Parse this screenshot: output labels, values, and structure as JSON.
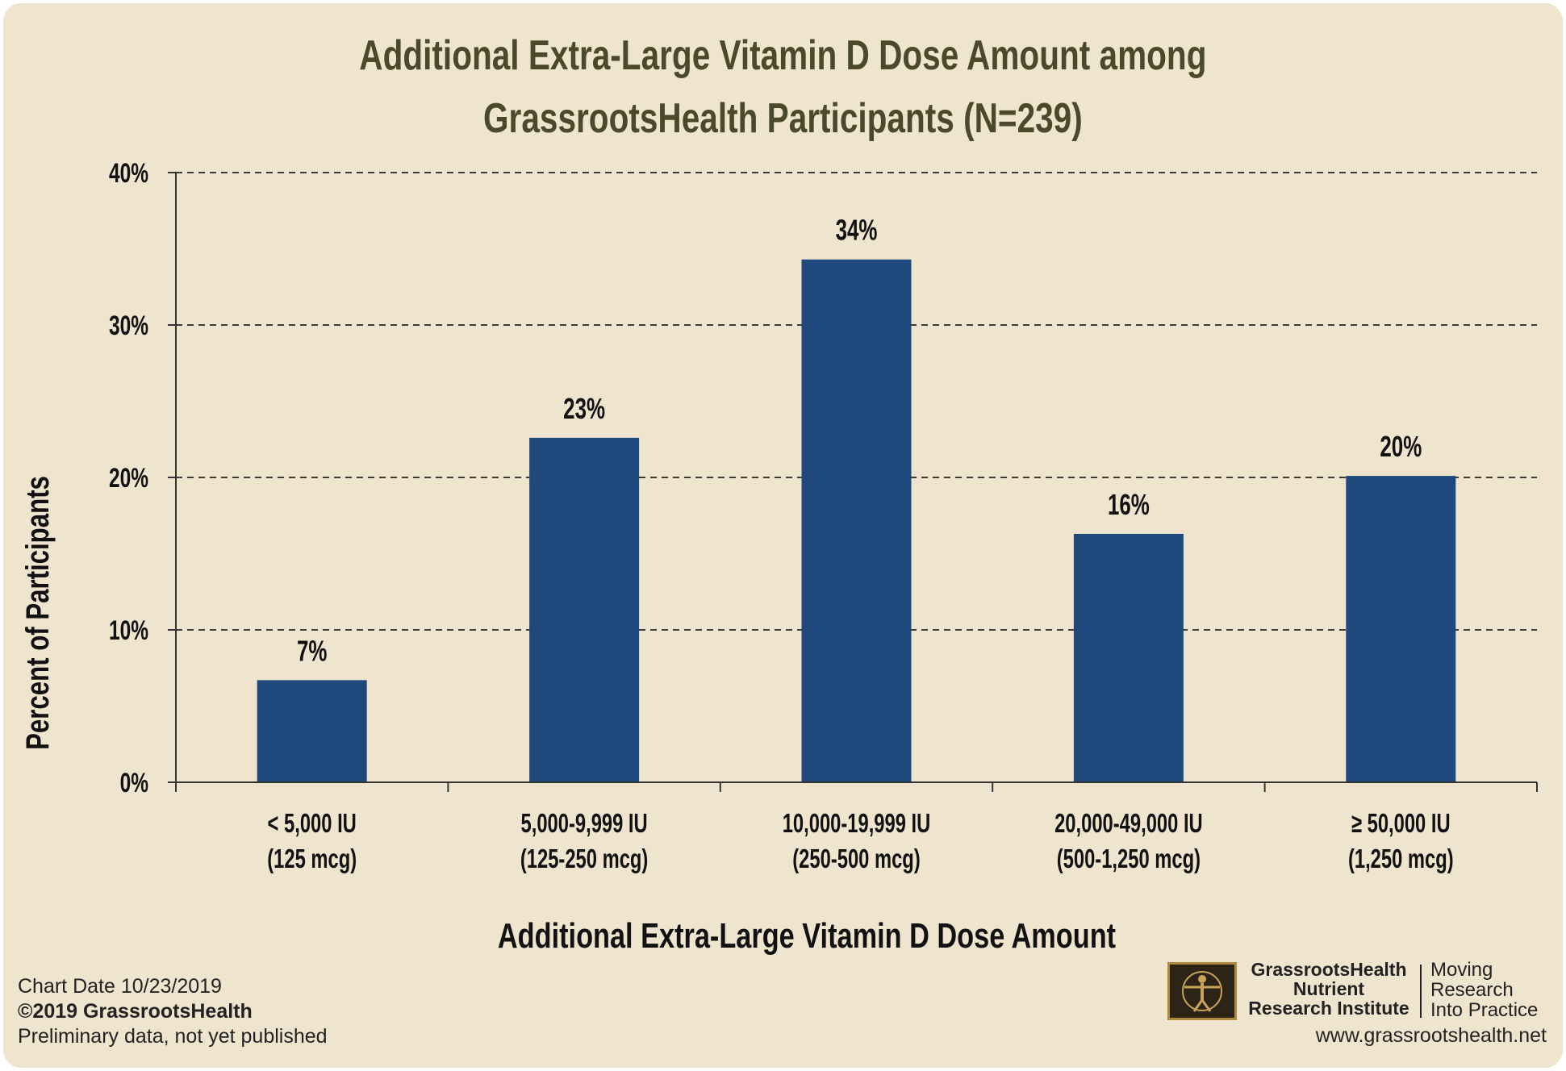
{
  "chart_data": {
    "type": "bar",
    "title_lines": [
      "Additional Extra-Large Vitamin D Dose Amount among",
      "GrassrootsHealth Participants (N=239)"
    ],
    "xlabel": "Additional Extra-Large Vitamin D Dose Amount",
    "ylabel": "Percent of Participants",
    "categories": [
      [
        "< 5,000 IU",
        "(125 mcg)"
      ],
      [
        "5,000-9,999 IU",
        "(125-250 mcg)"
      ],
      [
        "10,000-19,999 IU",
        "(250-500 mcg)"
      ],
      [
        "20,000-49,000 IU",
        "(500-1,250 mcg)"
      ],
      [
        "≥ 50,000 IU",
        "(1,250 mcg)"
      ]
    ],
    "values": [
      6.7,
      22.6,
      34.3,
      16.3,
      20.1
    ],
    "data_labels": [
      "7%",
      "23%",
      "34%",
      "16%",
      "20%"
    ],
    "yticks": [
      0,
      10,
      20,
      30,
      40
    ],
    "ytick_labels": [
      "0%",
      "10%",
      "20%",
      "30%",
      "40%"
    ],
    "ylim": [
      0,
      40
    ],
    "grid": true,
    "bar_color": "#1f497d",
    "grid_style": "dashed"
  },
  "footer": {
    "chart_date": "Chart Date  10/23/2019",
    "copyright": "©2019 GrassrootsHealth",
    "note": "Preliminary data, not yet published"
  },
  "brand": {
    "name_lines": [
      "GrassrootsHealth",
      "Nutrient",
      "Research Institute"
    ],
    "tagline_lines": [
      "Moving",
      "Research",
      "Into Practice"
    ],
    "url": "www.grassrootshealth.net"
  }
}
